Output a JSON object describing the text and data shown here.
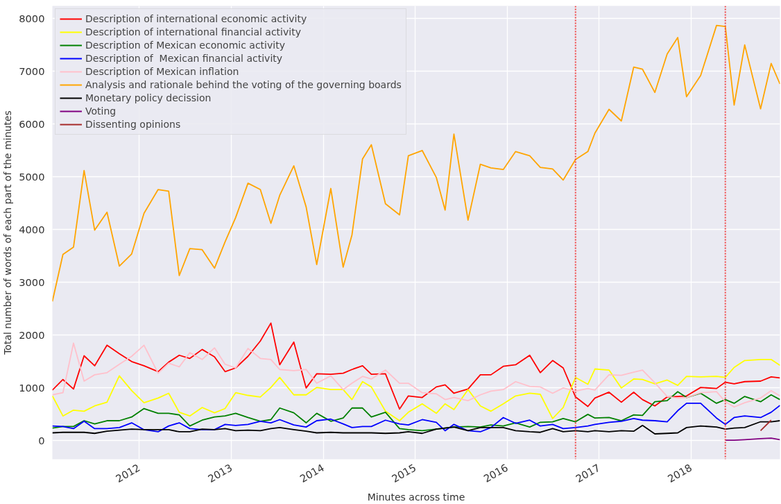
{
  "chart_data": {
    "type": "line",
    "xlabel": "Minutes across time",
    "ylabel": "Total number of words of each part of the minutes",
    "x": [
      "2011-01-21",
      "2011-03-04",
      "2011-04-15",
      "2011-05-27",
      "2011-07-08",
      "2011-08-26",
      "2011-10-14",
      "2011-12-02",
      "2012-01-20",
      "2012-03-16",
      "2012-04-27",
      "2012-06-08",
      "2012-07-20",
      "2012-09-07",
      "2012-10-26",
      "2012-12-07",
      "2013-01-18",
      "2013-03-08",
      "2013-04-26",
      "2013-06-07",
      "2013-07-12",
      "2013-09-06",
      "2013-10-25",
      "2013-12-06",
      "2014-01-31",
      "2014-03-21",
      "2014-04-25",
      "2014-06-06",
      "2014-07-11",
      "2014-09-05",
      "2014-10-31",
      "2014-12-05",
      "2015-01-29",
      "2015-03-26",
      "2015-04-30",
      "2015-06-04",
      "2015-07-30",
      "2015-09-17",
      "2015-10-29",
      "2015-12-17",
      "2016-02-04",
      "2016-03-31",
      "2016-05-12",
      "2016-06-30",
      "2016-08-11",
      "2016-09-29",
      "2016-11-17",
      "2016-12-15",
      "2017-02-09",
      "2017-03-30",
      "2017-05-18",
      "2017-06-22",
      "2017-08-10",
      "2017-09-28",
      "2017-11-09",
      "2017-12-14",
      "2018-02-08",
      "2018-04-12",
      "2018-05-17",
      "2018-06-21",
      "2018-08-02",
      "2018-10-04",
      "2018-11-15",
      "2018-12-20"
    ],
    "series": [
      {
        "name": "Description of international economic activity",
        "color": "#ff0000",
        "values": [
          960,
          1160,
          980,
          1610,
          1420,
          1810,
          1650,
          1500,
          1420,
          1310,
          1490,
          1620,
          1560,
          1730,
          1590,
          1310,
          1380,
          1600,
          1890,
          2230,
          1440,
          1870,
          1000,
          1270,
          1260,
          1280,
          1350,
          1420,
          1260,
          1270,
          600,
          850,
          820,
          1020,
          1060,
          900,
          980,
          1250,
          1250,
          1410,
          1440,
          1620,
          1290,
          1520,
          1380,
          830,
          650,
          810,
          920,
          730,
          920,
          780,
          660,
          830,
          840,
          850,
          1010,
          990,
          1110,
          1080,
          1120,
          1130,
          1210,
          1190
        ]
      },
      {
        "name": "Description of international financial activity",
        "color": "#ffff00",
        "values": [
          850,
          470,
          580,
          560,
          660,
          730,
          1230,
          950,
          720,
          810,
          900,
          540,
          470,
          630,
          530,
          610,
          910,
          860,
          830,
          1010,
          1200,
          870,
          870,
          1010,
          970,
          970,
          780,
          1120,
          1020,
          560,
          380,
          540,
          700,
          520,
          700,
          590,
          970,
          660,
          560,
          700,
          850,
          900,
          880,
          420,
          630,
          1200,
          1070,
          1360,
          1340,
          1000,
          1170,
          1160,
          1080,
          1150,
          1050,
          1220,
          1210,
          1220,
          1200,
          1390,
          1520,
          1540,
          1540,
          1430
        ]
      },
      {
        "name": "Description of Mexican economic activity",
        "color": "#008000",
        "values": [
          240,
          270,
          270,
          380,
          320,
          380,
          380,
          450,
          610,
          520,
          520,
          490,
          280,
          390,
          450,
          470,
          520,
          440,
          370,
          400,
          620,
          530,
          340,
          520,
          370,
          430,
          620,
          620,
          450,
          540,
          230,
          210,
          190,
          220,
          240,
          260,
          270,
          260,
          300,
          280,
          340,
          260,
          350,
          360,
          420,
          360,
          500,
          430,
          440,
          380,
          490,
          480,
          740,
          760,
          930,
          820,
          900,
          710,
          780,
          710,
          840,
          740,
          870,
          780
        ]
      },
      {
        "name": "Description of  Mexican financial activity",
        "color": "#0000ff",
        "values": [
          280,
          270,
          230,
          370,
          230,
          230,
          250,
          340,
          210,
          170,
          280,
          340,
          230,
          210,
          210,
          310,
          290,
          310,
          370,
          340,
          400,
          300,
          260,
          380,
          410,
          320,
          250,
          270,
          270,
          390,
          320,
          300,
          400,
          350,
          190,
          310,
          190,
          170,
          250,
          440,
          330,
          390,
          280,
          310,
          230,
          250,
          280,
          310,
          350,
          370,
          420,
          390,
          380,
          360,
          570,
          710,
          710,
          430,
          310,
          440,
          470,
          440,
          540,
          670
        ]
      },
      {
        "name": "Description of Mexican inflation",
        "color": "#ffc0cb",
        "values": [
          870,
          910,
          1850,
          1130,
          1250,
          1290,
          1450,
          1600,
          1810,
          1280,
          1470,
          1400,
          1670,
          1540,
          1760,
          1450,
          1380,
          1750,
          1560,
          1540,
          1350,
          1330,
          1350,
          1090,
          1230,
          970,
          1090,
          1220,
          1170,
          1340,
          1090,
          1090,
          910,
          890,
          780,
          820,
          760,
          870,
          940,
          970,
          1120,
          1030,
          1020,
          900,
          1000,
          940,
          990,
          960,
          1250,
          1240,
          1300,
          1340,
          1100,
          840,
          810,
          820,
          910,
          930,
          740,
          640,
          720,
          810,
          950,
          850
        ]
      },
      {
        "name": "Analysis and rationale behind the voting of the governing boards",
        "color": "#ffa500",
        "values": [
          2640,
          3530,
          3670,
          5120,
          3990,
          4330,
          3310,
          3540,
          4310,
          4760,
          4730,
          3130,
          3640,
          3620,
          3270,
          3770,
          4230,
          4880,
          4760,
          4120,
          4650,
          5210,
          4430,
          3340,
          4780,
          3290,
          3900,
          5340,
          5610,
          4490,
          4280,
          5400,
          5500,
          4990,
          4370,
          5810,
          4180,
          5240,
          5170,
          5140,
          5480,
          5400,
          5180,
          5150,
          4940,
          5330,
          5480,
          5830,
          6280,
          6060,
          7080,
          7040,
          6600,
          7330,
          7640,
          6520,
          6920,
          7870,
          7850,
          6360,
          7500,
          6290,
          7150,
          6760
        ]
      },
      {
        "name": "Monetary policy decission",
        "color": "#000000",
        "values": [
          150,
          160,
          160,
          160,
          140,
          180,
          200,
          220,
          210,
          210,
          210,
          170,
          170,
          220,
          210,
          230,
          190,
          200,
          190,
          230,
          250,
          210,
          180,
          150,
          160,
          150,
          150,
          150,
          150,
          140,
          150,
          170,
          140,
          220,
          240,
          260,
          190,
          250,
          250,
          250,
          190,
          170,
          160,
          230,
          170,
          190,
          170,
          190,
          170,
          190,
          180,
          290,
          130,
          140,
          150,
          250,
          280,
          260,
          220,
          240,
          250,
          360,
          360,
          380
        ]
      },
      {
        "name": "Voting",
        "color": "#800080",
        "values": [
          null,
          null,
          null,
          null,
          null,
          null,
          null,
          null,
          null,
          null,
          null,
          null,
          null,
          null,
          null,
          null,
          null,
          null,
          null,
          null,
          null,
          null,
          null,
          null,
          null,
          null,
          null,
          null,
          null,
          null,
          null,
          null,
          null,
          null,
          null,
          null,
          null,
          null,
          null,
          null,
          null,
          null,
          null,
          null,
          null,
          null,
          null,
          null,
          null,
          null,
          null,
          null,
          null,
          null,
          null,
          null,
          null,
          null,
          10,
          10,
          20,
          40,
          50,
          20
        ]
      },
      {
        "name": "Dissenting opinions",
        "color": "#a52a2a",
        "values": [
          null,
          null,
          null,
          null,
          null,
          null,
          null,
          null,
          null,
          null,
          null,
          null,
          null,
          null,
          null,
          null,
          null,
          null,
          null,
          null,
          null,
          null,
          null,
          null,
          null,
          null,
          null,
          null,
          null,
          null,
          null,
          null,
          null,
          null,
          null,
          null,
          null,
          null,
          null,
          null,
          null,
          null,
          null,
          null,
          null,
          null,
          null,
          null,
          null,
          null,
          null,
          null,
          null,
          null,
          null,
          null,
          null,
          null,
          null,
          null,
          null,
          190,
          390,
          null
        ]
      }
    ],
    "xlim": [
      "2011-01-21",
      "2018-12-20"
    ],
    "xticks": [
      "2012",
      "2013",
      "2014",
      "2015",
      "2016",
      "2017",
      "2018"
    ],
    "ylim": [
      -350,
      8240
    ],
    "yticks": [
      0,
      1000,
      2000,
      3000,
      4000,
      5000,
      6000,
      7000,
      8000
    ],
    "ref_lines": [
      {
        "axis": "x",
        "value": "2016-09-29",
        "color": "#f04848",
        "line_style": "dotted"
      },
      {
        "axis": "x",
        "value": "2018-05-17",
        "color": "#f04848",
        "line_style": "dotted"
      }
    ],
    "grid": true,
    "legend": "top left"
  }
}
